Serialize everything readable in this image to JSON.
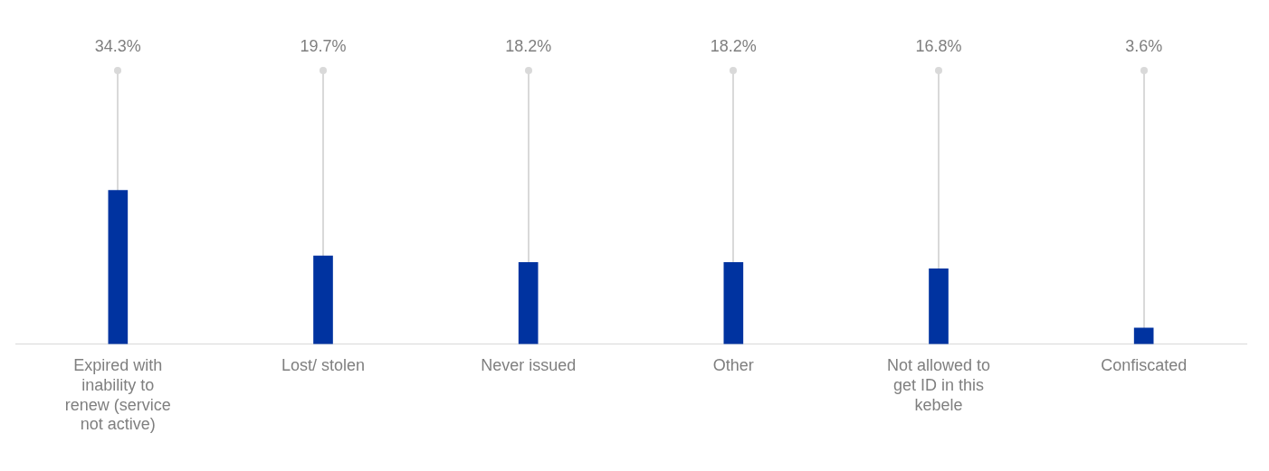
{
  "chart_data": {
    "type": "bar",
    "categories": [
      "Expired with inability to renew (service not active)",
      "Lost/ stolen",
      "Never issued",
      "Other",
      "Not allowed to get ID in this kebele",
      "Confiscated"
    ],
    "values": [
      34.3,
      19.7,
      18.2,
      18.2,
      16.8,
      3.6
    ],
    "value_labels": [
      "34.3%",
      "19.7%",
      "18.2%",
      "18.2%",
      "16.8%",
      "3.6%"
    ],
    "color": "#0033a0",
    "grid": false,
    "legend": false,
    "tick_labels": "x"
  }
}
